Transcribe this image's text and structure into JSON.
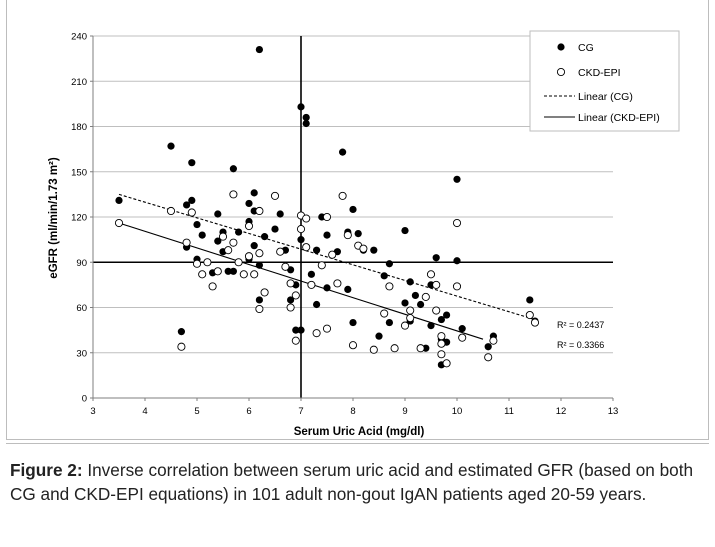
{
  "caption": {
    "label": "Figure 2:",
    "text": " Inverse correlation between serum uric acid and estimated GFR (based on both CG and CKD-EPI equations) in 101 adult non-gout IgAN patients aged 20-59 years."
  },
  "chart_data": {
    "type": "scatter",
    "xlabel": "Serum Uric Acid (mg/dl)",
    "ylabel": "eGFR (ml/min/1.73 m²)",
    "xlim": [
      3,
      13
    ],
    "ylim": [
      0,
      240
    ],
    "xticks": [
      "3",
      "4",
      "5",
      "6",
      "7",
      "8",
      "9",
      "10",
      "11",
      "12",
      "13"
    ],
    "yticks": [
      "0",
      "30",
      "60",
      "90",
      "120",
      "150",
      "180",
      "210",
      "240"
    ],
    "grid": "horizontal",
    "reference_lines": {
      "x": 7,
      "y": 90
    },
    "legend": {
      "position": "top-right",
      "entries": [
        "CG",
        "CKD-EPI",
        "Linear (CG)",
        "Linear (CKD-EPI)"
      ]
    },
    "annotations": [
      "R² = 0.2437",
      "R² = 0.3366"
    ],
    "series": [
      {
        "name": "CG",
        "marker": "filled-circle",
        "color": "#000000",
        "points": [
          [
            3.5,
            131
          ],
          [
            4.5,
            167
          ],
          [
            4.7,
            44
          ],
          [
            4.8,
            100
          ],
          [
            4.8,
            128
          ],
          [
            4.9,
            156
          ],
          [
            4.9,
            131
          ],
          [
            5.0,
            115
          ],
          [
            5.0,
            92
          ],
          [
            5.1,
            108
          ],
          [
            5.3,
            83
          ],
          [
            5.4,
            122
          ],
          [
            5.4,
            104
          ],
          [
            5.5,
            110
          ],
          [
            5.5,
            97
          ],
          [
            5.6,
            84
          ],
          [
            5.7,
            152
          ],
          [
            5.7,
            84
          ],
          [
            5.8,
            110
          ],
          [
            6.0,
            129
          ],
          [
            6.0,
            117
          ],
          [
            6.0,
            92
          ],
          [
            6.1,
            136
          ],
          [
            6.1,
            124
          ],
          [
            6.1,
            101
          ],
          [
            6.2,
            231
          ],
          [
            6.2,
            65
          ],
          [
            6.2,
            88
          ],
          [
            6.3,
            107
          ],
          [
            6.5,
            112
          ],
          [
            6.6,
            122
          ],
          [
            6.7,
            98
          ],
          [
            6.8,
            85
          ],
          [
            6.8,
            65
          ],
          [
            6.9,
            75
          ],
          [
            6.9,
            45
          ],
          [
            7.0,
            193
          ],
          [
            7.0,
            105
          ],
          [
            7.0,
            45
          ],
          [
            7.1,
            186
          ],
          [
            7.1,
            182
          ],
          [
            7.2,
            82
          ],
          [
            7.3,
            98
          ],
          [
            7.3,
            62
          ],
          [
            7.4,
            120
          ],
          [
            7.4,
            88
          ],
          [
            7.5,
            108
          ],
          [
            7.5,
            73
          ],
          [
            7.6,
            95
          ],
          [
            7.7,
            97
          ],
          [
            7.8,
            163
          ],
          [
            7.9,
            72
          ],
          [
            7.9,
            110
          ],
          [
            8.0,
            125
          ],
          [
            8.0,
            50
          ],
          [
            8.1,
            109
          ],
          [
            8.2,
            98
          ],
          [
            8.4,
            98
          ],
          [
            8.5,
            41
          ],
          [
            8.6,
            81
          ],
          [
            8.7,
            89
          ],
          [
            8.7,
            50
          ],
          [
            9.0,
            111
          ],
          [
            9.0,
            63
          ],
          [
            9.1,
            77
          ],
          [
            9.1,
            51
          ],
          [
            9.2,
            68
          ],
          [
            9.3,
            62
          ],
          [
            9.4,
            33
          ],
          [
            9.5,
            75
          ],
          [
            9.5,
            48
          ],
          [
            9.6,
            93
          ],
          [
            9.7,
            52
          ],
          [
            9.7,
            39
          ],
          [
            9.7,
            22
          ],
          [
            9.8,
            55
          ],
          [
            9.8,
            37
          ],
          [
            10.0,
            145
          ],
          [
            10.0,
            91
          ],
          [
            10.1,
            46
          ],
          [
            10.6,
            34
          ],
          [
            10.7,
            41
          ],
          [
            11.4,
            65
          ],
          [
            11.5,
            51
          ]
        ]
      },
      {
        "name": "CKD-EPI",
        "marker": "open-circle",
        "color": "#000000",
        "points": [
          [
            3.5,
            116
          ],
          [
            4.5,
            124
          ],
          [
            4.7,
            34
          ],
          [
            4.8,
            103
          ],
          [
            4.9,
            123
          ],
          [
            5.0,
            89
          ],
          [
            5.1,
            82
          ],
          [
            5.2,
            90
          ],
          [
            5.3,
            74
          ],
          [
            5.4,
            84
          ],
          [
            5.5,
            107
          ],
          [
            5.6,
            98
          ],
          [
            5.7,
            135
          ],
          [
            5.7,
            103
          ],
          [
            5.8,
            90
          ],
          [
            5.9,
            82
          ],
          [
            6.0,
            114
          ],
          [
            6.0,
            94
          ],
          [
            6.1,
            82
          ],
          [
            6.2,
            124
          ],
          [
            6.2,
            96
          ],
          [
            6.2,
            59
          ],
          [
            6.3,
            70
          ],
          [
            6.5,
            134
          ],
          [
            6.6,
            97
          ],
          [
            6.7,
            87
          ],
          [
            6.8,
            76
          ],
          [
            6.8,
            60
          ],
          [
            6.9,
            38
          ],
          [
            6.9,
            68
          ],
          [
            7.0,
            121
          ],
          [
            7.0,
            112
          ],
          [
            7.1,
            100
          ],
          [
            7.1,
            119
          ],
          [
            7.2,
            75
          ],
          [
            7.3,
            43
          ],
          [
            7.4,
            88
          ],
          [
            7.5,
            120
          ],
          [
            7.5,
            46
          ],
          [
            7.6,
            95
          ],
          [
            7.7,
            76
          ],
          [
            7.8,
            134
          ],
          [
            7.9,
            108
          ],
          [
            8.0,
            35
          ],
          [
            8.1,
            101
          ],
          [
            8.2,
            99
          ],
          [
            8.4,
            32
          ],
          [
            8.6,
            56
          ],
          [
            8.7,
            74
          ],
          [
            8.8,
            33
          ],
          [
            9.0,
            48
          ],
          [
            9.1,
            58
          ],
          [
            9.1,
            53
          ],
          [
            9.3,
            33
          ],
          [
            9.4,
            67
          ],
          [
            9.5,
            82
          ],
          [
            9.6,
            75
          ],
          [
            9.6,
            58
          ],
          [
            9.7,
            41
          ],
          [
            9.7,
            36
          ],
          [
            9.7,
            29
          ],
          [
            9.8,
            23
          ],
          [
            10.0,
            116
          ],
          [
            10.0,
            74
          ],
          [
            10.1,
            40
          ],
          [
            10.6,
            27
          ],
          [
            10.7,
            38
          ],
          [
            11.4,
            55
          ],
          [
            11.5,
            50
          ]
        ]
      }
    ],
    "trendlines": [
      {
        "name": "Linear (CG)",
        "style": "dashed",
        "from": [
          3.5,
          135
        ],
        "to": [
          11.5,
          52
        ],
        "r2_label": "R² = 0.2437"
      },
      {
        "name": "Linear (CKD-EPI)",
        "style": "solid",
        "from": [
          3.5,
          116
        ],
        "to": [
          10.5,
          39
        ],
        "r2_label": "R² = 0.3366"
      }
    ]
  }
}
